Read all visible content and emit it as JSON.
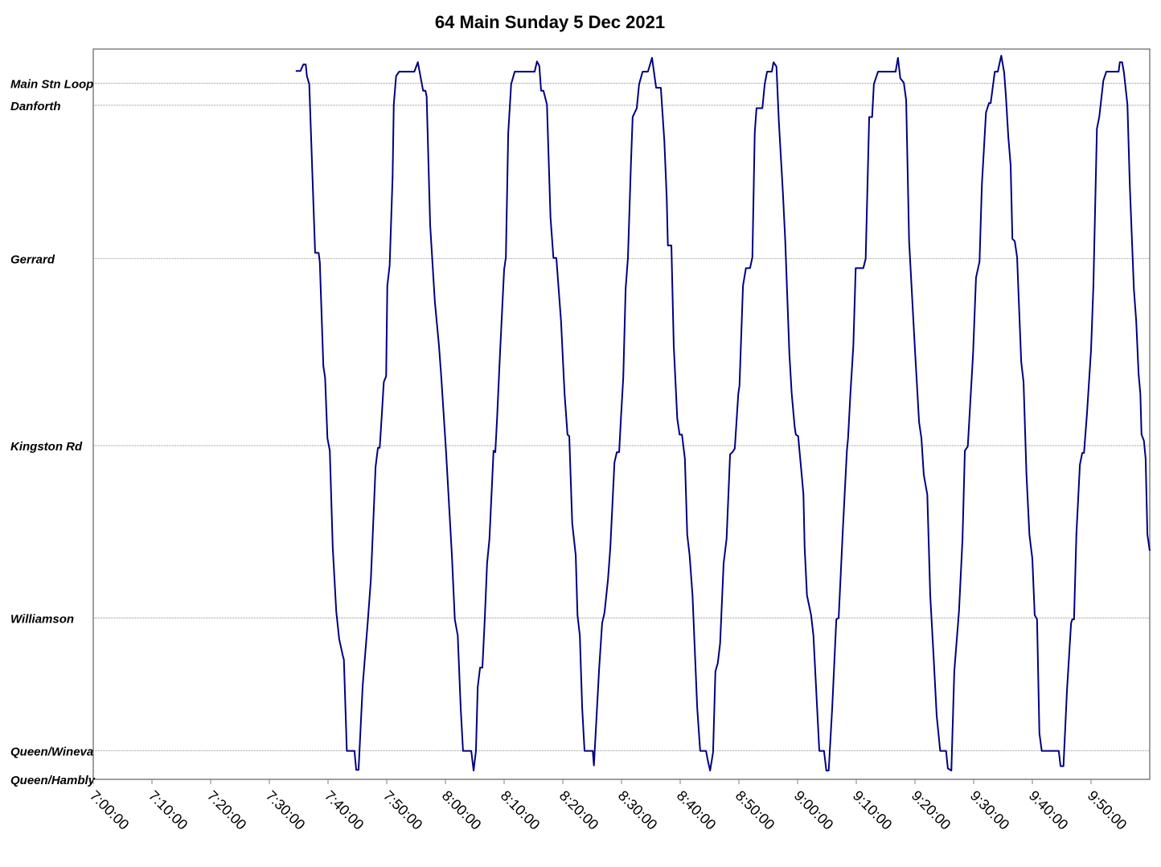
{
  "chart_data": {
    "type": "line",
    "title": "64 Main Sunday 5 Dec 2021",
    "color": "#000080",
    "grid": true,
    "xlim": [
      420,
      600
    ],
    "ylim": [
      0,
      100
    ],
    "xticks": [
      {
        "value": 420,
        "label": "7:00:00"
      },
      {
        "value": 430,
        "label": "7:10:00"
      },
      {
        "value": 440,
        "label": "7:20:00"
      },
      {
        "value": 450,
        "label": "7:30:00"
      },
      {
        "value": 460,
        "label": "7:40:00"
      },
      {
        "value": 470,
        "label": "7:50:00"
      },
      {
        "value": 480,
        "label": "8:00:00"
      },
      {
        "value": 490,
        "label": "8:10:00"
      },
      {
        "value": 500,
        "label": "8:20:00"
      },
      {
        "value": 510,
        "label": "8:30:00"
      },
      {
        "value": 520,
        "label": "8:40:00"
      },
      {
        "value": 530,
        "label": "8:50:00"
      },
      {
        "value": 540,
        "label": "9:00:00"
      },
      {
        "value": 550,
        "label": "9:10:00"
      },
      {
        "value": 560,
        "label": "9:20:00"
      },
      {
        "value": 570,
        "label": "9:30:00"
      },
      {
        "value": 580,
        "label": "9:40:00"
      },
      {
        "value": 590,
        "label": "9:50:00"
      }
    ],
    "yticks": [
      {
        "value": 0,
        "label": "Queen/Hambly"
      },
      {
        "value": 3.9,
        "label": "Queen/Wineva"
      },
      {
        "value": 22.1,
        "label": "Williamson"
      },
      {
        "value": 45.7,
        "label": "Kingston Rd"
      },
      {
        "value": 71.3,
        "label": "Gerrard"
      },
      {
        "value": 92.3,
        "label": "Danforth"
      },
      {
        "value": 95.3,
        "label": "Main Stn Loop"
      }
    ],
    "x": [
      454.5,
      455.3,
      455.8,
      456.2,
      456.4,
      456.8,
      457.8,
      458.4,
      458.6,
      459.2,
      459.5,
      459.9,
      460.3,
      460.8,
      461.4,
      461.9,
      462.5,
      462.7,
      463.2,
      464.5,
      464.8,
      465.2,
      465.9,
      466.8,
      467.3,
      468.1,
      468.5,
      468.8,
      469.0,
      469.5,
      469.9,
      470.1,
      470.5,
      471.0,
      471.2,
      471.6,
      472.1,
      474.7,
      475.3,
      476.2,
      476.6,
      476.8,
      477.4,
      478.2,
      478.9,
      479.3,
      480.1,
      481.1,
      481.6,
      482.1,
      482.6,
      483.0,
      484.4,
      484.8,
      485.2,
      485.5,
      485.9,
      486.3,
      486.7,
      487.1,
      487.5,
      488.2,
      488.5,
      488.8,
      489.3,
      490.0,
      490.3,
      490.7,
      491.2,
      491.8,
      495.2,
      495.6,
      496.0,
      496.3,
      496.7,
      497.3,
      497.9,
      498.4,
      498.9,
      499.7,
      500.3,
      500.8,
      501.1,
      501.6,
      502.2,
      502.5,
      502.9,
      503.3,
      503.7,
      505.1,
      505.3,
      506.2,
      506.7,
      507.1,
      507.7,
      508.1,
      508.8,
      509.2,
      509.6,
      509.9,
      510.3,
      510.7,
      511.1,
      511.6,
      511.9,
      512.6,
      513.0,
      513.6,
      514.5,
      515.2,
      515.9,
      516.7,
      517.3,
      517.7,
      517.9,
      518.5,
      518.9,
      519.5,
      519.9,
      520.3,
      520.8,
      521.2,
      521.6,
      522.1,
      522.9,
      523.4,
      524.4,
      524.7,
      525.1,
      525.6,
      526.0,
      526.4,
      526.8,
      527.4,
      527.9,
      528.5,
      528.9,
      529.3,
      529.9,
      530.1,
      530.7,
      531.2,
      531.9,
      532.3,
      532.7,
      533.0,
      534.0,
      534.4,
      534.8,
      535.6,
      535.9,
      536.4,
      536.8,
      537.5,
      537.9,
      538.6,
      539.0,
      539.5,
      539.7,
      540.1,
      540.7,
      541.0,
      541.2,
      541.6,
      542.3,
      542.7,
      543.7,
      544.5,
      544.9,
      545.3,
      545.9,
      546.6,
      547.0,
      547.7,
      548.4,
      548.6,
      549.0,
      549.5,
      549.9,
      551.2,
      551.6,
      552.2,
      552.7,
      553.0,
      553.7,
      556.7,
      557.1,
      557.5,
      558.1,
      558.5,
      559.0,
      560.0,
      560.7,
      561.1,
      561.5,
      562.1,
      562.6,
      563.2,
      563.7,
      564.3,
      565.3,
      565.6,
      566.2,
      566.7,
      567.5,
      568.1,
      568.5,
      569.0,
      569.9,
      570.4,
      571.0,
      571.4,
      572.1,
      572.6,
      572.9,
      573.6,
      574.1,
      574.7,
      575.2,
      575.5,
      575.9,
      576.3,
      576.6,
      577.0,
      577.4,
      578.1,
      578.5,
      579.0,
      579.5,
      580.0,
      580.4,
      580.8,
      581.2,
      581.6,
      584.5,
      584.8,
      585.3,
      585.9,
      586.6,
      586.8,
      587.1,
      587.5,
      588.1,
      588.5,
      588.8,
      589.3,
      590.0,
      590.4,
      591.0,
      591.4,
      592.1,
      592.6,
      594.7,
      594.9,
      595.3,
      595.6,
      596.2,
      596.6,
      597.3,
      597.7,
      598.1,
      598.4,
      598.6,
      599.0,
      599.3,
      599.6,
      600.0
    ],
    "values": [
      97.0,
      97.0,
      97.9,
      97.9,
      96.3,
      95.2,
      72.1,
      72.1,
      70.8,
      56.6,
      55.0,
      46.7,
      45.0,
      31.8,
      23.0,
      19.2,
      17.0,
      16.4,
      3.9,
      3.9,
      1.3,
      1.3,
      12.8,
      21.9,
      27.4,
      42.8,
      45.4,
      45.4,
      47.8,
      54.4,
      55.2,
      67.6,
      70.4,
      82.5,
      92.4,
      96.3,
      96.9,
      96.9,
      98.2,
      94.3,
      94.3,
      93.5,
      75.9,
      65.4,
      59.4,
      55.0,
      45.0,
      30.7,
      21.9,
      19.7,
      9.8,
      3.9,
      3.9,
      1.2,
      3.9,
      12.6,
      15.3,
      15.3,
      21.9,
      29.6,
      32.9,
      45.0,
      44.8,
      49.4,
      58.3,
      69.8,
      71.5,
      88.5,
      95.2,
      96.9,
      96.9,
      98.3,
      97.7,
      94.3,
      94.3,
      92.4,
      77.0,
      71.4,
      71.4,
      62.7,
      52.8,
      47.2,
      47.0,
      35.1,
      30.7,
      22.5,
      19.7,
      9.8,
      3.9,
      3.9,
      1.9,
      15.3,
      21.4,
      22.8,
      27.4,
      31.8,
      43.4,
      44.8,
      44.8,
      49.4,
      55.0,
      67.1,
      71.5,
      84.1,
      90.7,
      91.9,
      95.2,
      96.9,
      96.9,
      98.8,
      94.7,
      94.7,
      87.4,
      79.7,
      73.1,
      73.1,
      59.4,
      49.4,
      47.2,
      47.2,
      43.9,
      33.5,
      30.7,
      25.2,
      9.8,
      3.9,
      3.9,
      2.6,
      1.2,
      3.7,
      14.8,
      15.9,
      18.6,
      29.6,
      32.9,
      44.5,
      44.8,
      45.3,
      52.8,
      53.9,
      67.6,
      70.0,
      70.0,
      71.5,
      88.5,
      91.9,
      91.9,
      95.2,
      96.9,
      96.9,
      98.2,
      97.6,
      90.2,
      80.3,
      73.7,
      58.3,
      52.8,
      48.3,
      47.2,
      47.0,
      41.7,
      39.0,
      31.8,
      25.2,
      22.5,
      19.7,
      3.9,
      3.9,
      1.2,
      1.2,
      9.8,
      21.9,
      22.1,
      34.0,
      45.0,
      46.7,
      52.8,
      59.4,
      70.0,
      70.0,
      71.3,
      90.7,
      90.7,
      95.2,
      96.9,
      96.9,
      98.8,
      96.0,
      95.4,
      93.0,
      73.7,
      58.8,
      48.9,
      46.7,
      41.7,
      39.0,
      25.2,
      16.4,
      8.7,
      3.9,
      3.9,
      1.5,
      1.2,
      14.8,
      23.0,
      32.9,
      45.0,
      45.6,
      58.3,
      68.7,
      70.9,
      81.4,
      91.3,
      92.6,
      92.6,
      96.9,
      96.9,
      99.1,
      96.8,
      93.5,
      88.0,
      84.1,
      74.0,
      73.7,
      71.5,
      57.2,
      54.4,
      41.7,
      33.5,
      30.2,
      22.5,
      21.9,
      6.3,
      3.9,
      3.9,
      1.8,
      1.8,
      12.2,
      21.4,
      21.9,
      21.9,
      33.5,
      43.1,
      44.7,
      44.7,
      50.0,
      58.8,
      67.6,
      89.1,
      90.7,
      95.7,
      96.9,
      96.9,
      98.2,
      98.2,
      96.8,
      92.4,
      81.4,
      67.1,
      62.7,
      55.5,
      52.8,
      47.2,
      46.4,
      43.9,
      33.5,
      31.3
    ]
  }
}
